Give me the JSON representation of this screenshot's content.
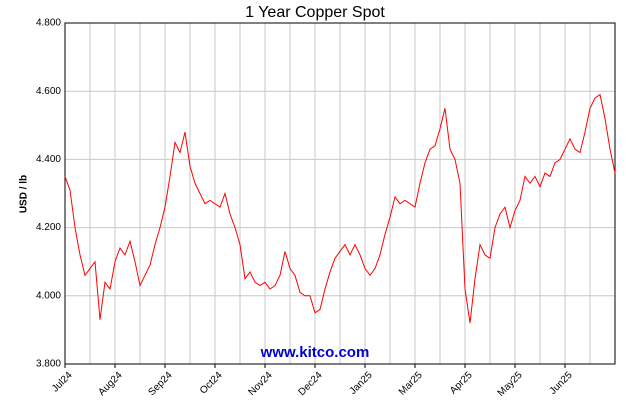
{
  "chart_data": {
    "type": "line",
    "title": "1 Year Copper Spot",
    "y_label": "USD / lb",
    "watermark": "www.kitco.com",
    "categories": [
      "Jul24",
      null,
      null,
      null,
      null,
      null,
      null,
      null,
      null,
      null,
      "Aug24",
      null,
      null,
      null,
      null,
      null,
      null,
      null,
      null,
      null,
      "Sep24",
      null,
      null,
      null,
      null,
      null,
      null,
      null,
      null,
      null,
      "Oct24",
      null,
      null,
      null,
      null,
      null,
      null,
      null,
      null,
      null,
      "Nov24",
      null,
      null,
      null,
      null,
      null,
      null,
      null,
      null,
      null,
      "Dec24",
      null,
      null,
      null,
      null,
      null,
      null,
      null,
      null,
      null,
      "Jan25",
      null,
      null,
      null,
      null,
      null,
      null,
      null,
      null,
      null,
      "Mar25",
      null,
      null,
      null,
      null,
      null,
      null,
      null,
      null,
      null,
      "Apr25",
      null,
      null,
      null,
      null,
      null,
      null,
      null,
      null,
      null,
      "May25",
      null,
      null,
      null,
      null,
      null,
      null,
      null,
      null,
      null,
      "Jun25",
      null,
      null,
      null,
      null,
      null,
      null,
      null,
      null,
      null,
      null
    ],
    "series": [
      {
        "color": "#ff0000",
        "values": [
          4.35,
          4.31,
          4.2,
          4.12,
          4.06,
          4.08,
          4.1,
          3.93,
          4.04,
          4.02,
          4.1,
          4.14,
          4.12,
          4.16,
          4.1,
          4.03,
          4.06,
          4.09,
          4.15,
          4.2,
          4.26,
          4.35,
          4.45,
          4.42,
          4.48,
          4.38,
          4.33,
          4.3,
          4.27,
          4.28,
          4.27,
          4.26,
          4.3,
          4.24,
          4.2,
          4.15,
          4.05,
          4.07,
          4.04,
          4.03,
          4.04,
          4.02,
          4.03,
          4.06,
          4.13,
          4.08,
          4.06,
          4.01,
          4.0,
          4.0,
          3.95,
          3.96,
          4.02,
          4.07,
          4.11,
          4.13,
          4.15,
          4.12,
          4.15,
          4.12,
          4.08,
          4.06,
          4.08,
          4.12,
          4.18,
          4.23,
          4.29,
          4.27,
          4.28,
          4.27,
          4.26,
          4.33,
          4.39,
          4.43,
          4.44,
          4.49,
          4.55,
          4.43,
          4.4,
          4.33,
          4.02,
          3.92,
          4.05,
          4.15,
          4.12,
          4.11,
          4.2,
          4.24,
          4.26,
          4.2,
          4.25,
          4.28,
          4.35,
          4.33,
          4.35,
          4.32,
          4.36,
          4.35,
          4.39,
          4.4,
          4.43,
          4.46,
          4.43,
          4.42,
          4.48,
          4.55,
          4.58,
          4.59,
          4.52,
          4.43,
          4.36
        ]
      }
    ],
    "ylim": [
      3.8,
      4.8
    ],
    "yticks": [
      {
        "value": 3.8,
        "label": "3.800"
      },
      {
        "value": 4.0,
        "label": "4.000"
      },
      {
        "value": 4.2,
        "label": "4.200"
      },
      {
        "value": 4.4,
        "label": "4.400"
      },
      {
        "value": 4.6,
        "label": "4.600"
      },
      {
        "value": 4.8,
        "label": "4.800"
      }
    ],
    "grid": true
  }
}
